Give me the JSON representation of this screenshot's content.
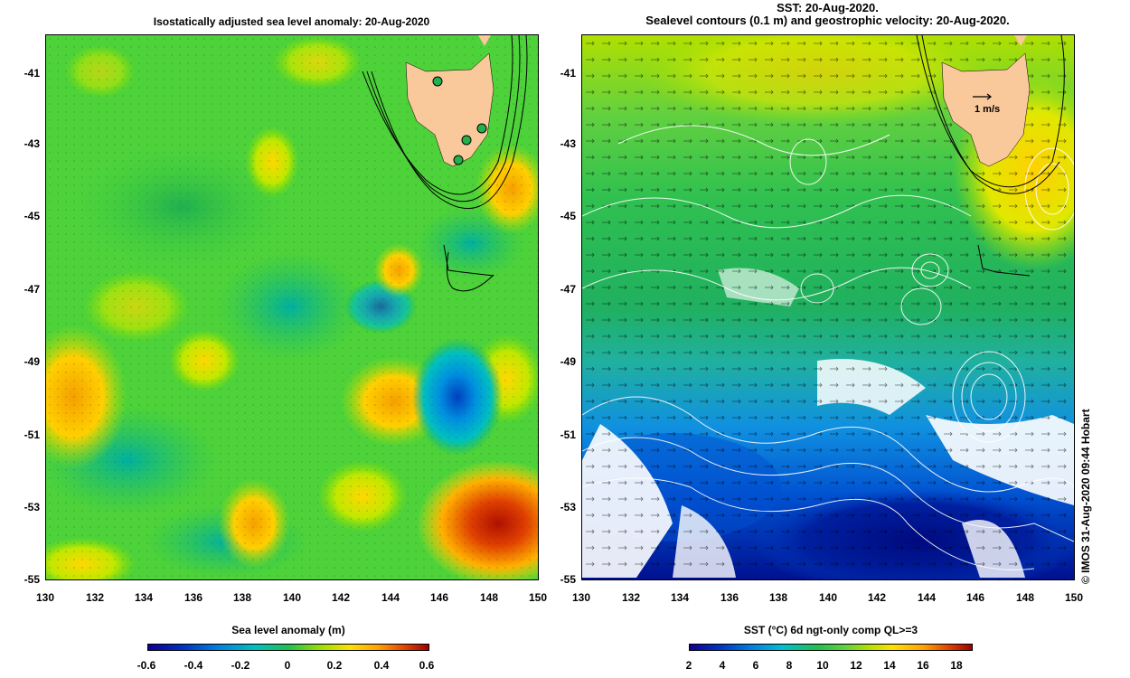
{
  "left_panel": {
    "title": "Isostatically adjusted sea level anomaly: 20-Aug-2020",
    "colorbar": {
      "title": "Sea level anomaly (m)",
      "labels": [
        "-0.6",
        "-0.4",
        "-0.2",
        "0",
        "0.2",
        "0.4",
        "0.6"
      ],
      "range": [
        -0.6,
        0.6
      ]
    }
  },
  "right_panel": {
    "title_line1": "SST: 20-Aug-2020.",
    "title_line2": "Sealevel contours (0.1 m) and geostrophic velocity: 20-Aug-2020.",
    "velocity_scale_label": "1 m/s",
    "colorbar": {
      "title": "SST (°C) 6d ngt-only comp QL>=3",
      "labels": [
        "2",
        "4",
        "6",
        "8",
        "10",
        "12",
        "14",
        "16",
        "18"
      ],
      "range": [
        2,
        19
      ]
    }
  },
  "axes": {
    "lat_labels": [
      "-41",
      "-43",
      "-45",
      "-47",
      "-49",
      "-51",
      "-53",
      "-55"
    ],
    "lon_labels": [
      "130",
      "132",
      "134",
      "136",
      "138",
      "140",
      "142",
      "144",
      "146",
      "148",
      "150"
    ]
  },
  "credit": "© IMOS 31-Aug-2020 09:44 Hobart",
  "colors": {
    "land": "#f9c89b",
    "station": "#22b14c"
  }
}
